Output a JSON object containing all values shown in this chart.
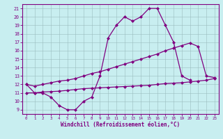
{
  "line1_x": [
    0,
    1,
    2,
    3,
    4,
    5,
    6,
    7,
    8,
    9,
    10,
    11,
    12,
    13,
    14,
    15,
    16,
    17,
    18,
    19,
    20
  ],
  "line1_y": [
    12,
    11,
    11,
    10.5,
    9.5,
    9,
    9,
    10,
    10.5,
    13,
    17.5,
    19,
    20,
    19.5,
    20,
    21,
    21,
    19,
    17,
    13,
    12.5
  ],
  "line2_x": [
    0,
    1,
    2,
    3,
    4,
    5,
    6,
    7,
    8,
    9,
    10,
    11,
    12,
    13,
    14,
    15,
    16,
    17,
    18,
    19,
    20,
    21,
    22,
    23
  ],
  "line2_y": [
    12,
    11.8,
    12.0,
    12.2,
    12.4,
    12.5,
    12.7,
    13.0,
    13.3,
    13.5,
    13.8,
    14.1,
    14.4,
    14.7,
    15.0,
    15.3,
    15.6,
    16.0,
    16.3,
    16.6,
    16.9,
    16.5,
    13.0,
    12.8
  ],
  "line3_x": [
    0,
    1,
    2,
    3,
    4,
    5,
    6,
    7,
    8,
    9,
    10,
    11,
    12,
    13,
    14,
    15,
    16,
    17,
    18,
    19,
    20,
    21,
    22,
    23
  ],
  "line3_y": [
    11,
    11.0,
    11.1,
    11.15,
    11.2,
    11.3,
    11.4,
    11.5,
    11.55,
    11.6,
    11.65,
    11.7,
    11.75,
    11.8,
    11.85,
    11.9,
    12.0,
    12.1,
    12.15,
    12.2,
    12.3,
    12.4,
    12.5,
    12.7
  ],
  "color": "#800080",
  "bg_color": "#c8eef0",
  "grid_color": "#9abcbe",
  "xlabel": "Windchill (Refroidissement éolien,°C)",
  "xlim": [
    -0.5,
    23.5
  ],
  "ylim": [
    8.5,
    21.5
  ],
  "yticks": [
    9,
    10,
    11,
    12,
    13,
    14,
    15,
    16,
    17,
    18,
    19,
    20,
    21
  ],
  "xticks": [
    0,
    1,
    2,
    3,
    4,
    5,
    6,
    7,
    8,
    9,
    10,
    11,
    12,
    13,
    14,
    15,
    16,
    17,
    18,
    19,
    20,
    21,
    22,
    23
  ],
  "marker": "D",
  "markersize": 2.0,
  "linewidth": 0.9
}
